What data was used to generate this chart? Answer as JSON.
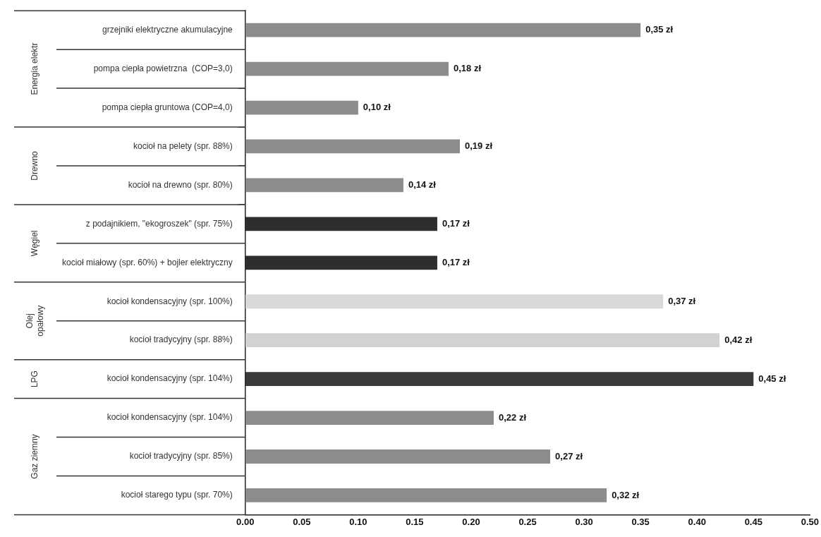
{
  "chart_data": {
    "type": "bar",
    "orientation": "horizontal",
    "categories": [
      "grzejniki elektryczne akumulacyjne",
      "pompa ciepła powietrzna  (COP=3,0)",
      "pompa ciepła gruntowa (COP=4,0)",
      "kocioł na pelety (spr. 88%)",
      "kocioł na drewno (spr. 80%)",
      "z podajnikiem, \"ekogroszek\" (spr. 75%)",
      "kocioł miałowy (spr. 60%) + bojler elektryczny",
      "kocioł kondensacyjny (spr. 100%)",
      "kocioł tradycyjny (spr. 88%)",
      "kocioł kondensacyjny (spr. 104%)",
      "kocioł kondensacyjny (spr. 104%)",
      "kocioł tradycyjny (spr. 85%)",
      "kocioł starego typu (spr. 70%)"
    ],
    "values": [
      0.35,
      0.18,
      0.1,
      0.19,
      0.14,
      0.17,
      0.17,
      0.37,
      0.42,
      0.45,
      0.22,
      0.27,
      0.32
    ],
    "value_labels": [
      "0,35 zł",
      "0,18 zł",
      "0,10 zł",
      "0,19 zł",
      "0,14 zł",
      "0,17 zł",
      "0,17 zł",
      "0,37 zł",
      "0,42 zł",
      "0,45 zł",
      "0,22 zł",
      "0,27 zł",
      "0,32 zł"
    ],
    "colors": [
      "#8c8c8c",
      "#8c8c8c",
      "#8c8c8c",
      "#8c8c8c",
      "#8c8c8c",
      "#2e2e2e",
      "#2e2e2e",
      "#d9d9d9",
      "#d2d2d2",
      "#3a3a3a",
      "#8c8c8c",
      "#8c8c8c",
      "#8c8c8c"
    ],
    "xlim": [
      0,
      0.5
    ],
    "xticks": [
      {
        "value": 0,
        "label": "0.00"
      },
      {
        "value": 0.05,
        "label": "0.05"
      },
      {
        "value": 0.1,
        "label": "0.10"
      },
      {
        "value": 0.15,
        "label": "0.15"
      },
      {
        "value": 0.2,
        "label": "0.20"
      },
      {
        "value": 0.25,
        "label": "0.25"
      },
      {
        "value": 0.3,
        "label": "0.30"
      },
      {
        "value": 0.35,
        "label": "0.35"
      },
      {
        "value": 0.4,
        "label": "0.40"
      },
      {
        "value": 0.45,
        "label": "0.45"
      },
      {
        "value": 0.5,
        "label": "0.50"
      }
    ],
    "grid": false,
    "legend": false,
    "annotations": [
      "Energia elektr",
      "Drewno",
      "Węgiel",
      "Olej opałowy",
      "LPG",
      "Gaz ziemny"
    ]
  }
}
